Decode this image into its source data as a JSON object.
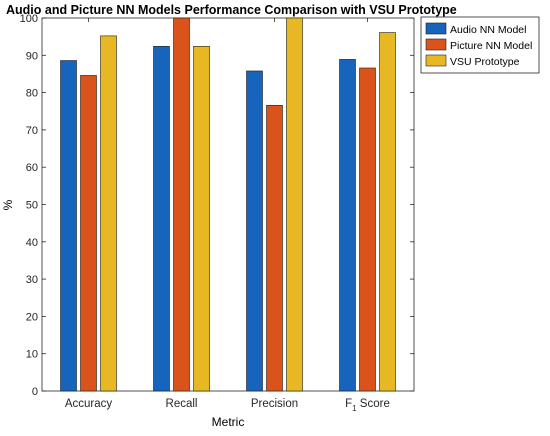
{
  "chart_data": {
    "type": "bar",
    "title": "Audio and Picture NN Models Performance Comparison with VSU Prototype",
    "xlabel": "Metric",
    "ylabel": "%",
    "ylim": [
      0,
      100
    ],
    "yticks": [
      0,
      10,
      20,
      30,
      40,
      50,
      60,
      70,
      80,
      90,
      100
    ],
    "grid": false,
    "legend_position": "top-right, outside plot",
    "categories": [
      "Accuracy",
      "Recall",
      "Precision",
      "F1 Score"
    ],
    "f1_label": {
      "main": "F",
      "sub": "1",
      "rest": "Score"
    },
    "series": [
      {
        "name": "Audio NN Model",
        "color": "#1764BD",
        "values": [
          88.6,
          92.4,
          85.8,
          88.9
        ]
      },
      {
        "name": "Picture NN Model",
        "color": "#D9531A",
        "values": [
          84.6,
          100,
          76.6,
          86.6
        ]
      },
      {
        "name": "VSU Prototype",
        "color": "#E8B824",
        "values": [
          95.2,
          92.4,
          100,
          96.1
        ]
      }
    ]
  }
}
